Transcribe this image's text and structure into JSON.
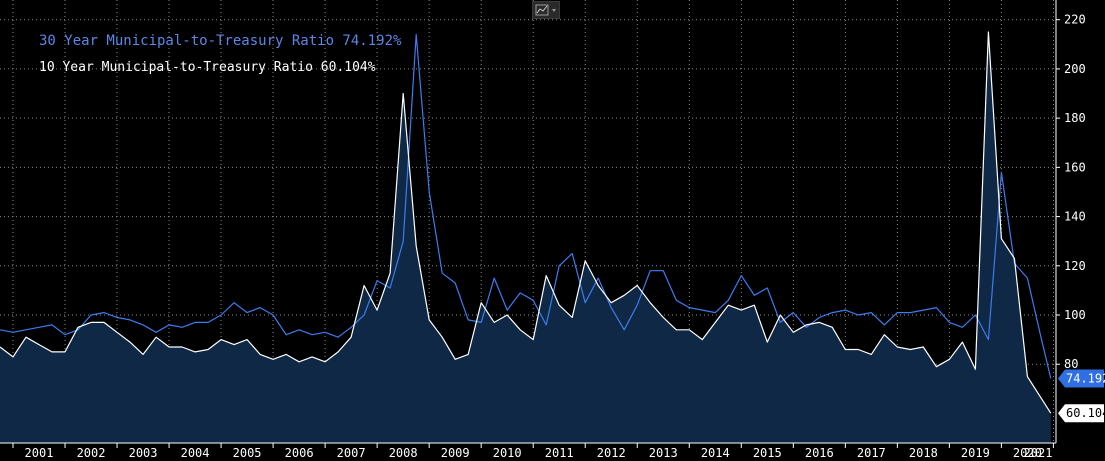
{
  "toolbar": {
    "icon": "line-chart-icon"
  },
  "legend": {
    "series_30": "30 Year Municipal-to-Treasury Ratio 74.192%",
    "series_10": "10 Year Municipal-to-Treasury Ratio 60.104%"
  },
  "colors": {
    "series_30": "#3d7cf0",
    "series_10": "#ffffff",
    "area": "#0e2846",
    "grid": "#8a8a8a",
    "background": "#000000"
  },
  "chart_data": {
    "type": "line",
    "x_unit": "year",
    "xlim": [
      2000.75,
      2021.05
    ],
    "ylim": [
      48,
      228
    ],
    "y_ticks": [
      80,
      100,
      120,
      140,
      160,
      180,
      200,
      220
    ],
    "x_ticks": [
      "2001",
      "2002",
      "2003",
      "2004",
      "2005",
      "2006",
      "2007",
      "2008",
      "2009",
      "2010",
      "2011",
      "2012",
      "2013",
      "2014",
      "2015",
      "2016",
      "2017",
      "2018",
      "2019",
      "2020",
      "2021"
    ],
    "grid": true,
    "last_value_flags": {
      "series_30": "74.192",
      "series_10": "60.104"
    },
    "series": [
      {
        "name": "30 Year Municipal-to-Treasury Ratio",
        "key": "series_30",
        "points": [
          [
            2000.75,
            94
          ],
          [
            2001.0,
            93
          ],
          [
            2001.25,
            94
          ],
          [
            2001.5,
            95
          ],
          [
            2001.75,
            96
          ],
          [
            2002.0,
            92
          ],
          [
            2002.25,
            94
          ],
          [
            2002.5,
            100
          ],
          [
            2002.75,
            101
          ],
          [
            2003.0,
            99
          ],
          [
            2003.25,
            98
          ],
          [
            2003.5,
            96
          ],
          [
            2003.75,
            93
          ],
          [
            2004.0,
            96
          ],
          [
            2004.25,
            95
          ],
          [
            2004.5,
            97
          ],
          [
            2004.75,
            97
          ],
          [
            2005.0,
            100
          ],
          [
            2005.25,
            105
          ],
          [
            2005.5,
            101
          ],
          [
            2005.75,
            103
          ],
          [
            2006.0,
            100
          ],
          [
            2006.25,
            92
          ],
          [
            2006.5,
            94
          ],
          [
            2006.75,
            92
          ],
          [
            2007.0,
            93
          ],
          [
            2007.25,
            91
          ],
          [
            2007.5,
            95
          ],
          [
            2007.75,
            100
          ],
          [
            2008.0,
            114
          ],
          [
            2008.25,
            111
          ],
          [
            2008.5,
            130
          ],
          [
            2008.75,
            214
          ],
          [
            2009.0,
            150
          ],
          [
            2009.25,
            117
          ],
          [
            2009.5,
            113
          ],
          [
            2009.75,
            98
          ],
          [
            2010.0,
            97
          ],
          [
            2010.25,
            115
          ],
          [
            2010.5,
            102
          ],
          [
            2010.75,
            109
          ],
          [
            2011.0,
            106
          ],
          [
            2011.25,
            96
          ],
          [
            2011.5,
            120
          ],
          [
            2011.75,
            125
          ],
          [
            2012.0,
            105
          ],
          [
            2012.25,
            115
          ],
          [
            2012.5,
            103
          ],
          [
            2012.75,
            94
          ],
          [
            2013.0,
            104
          ],
          [
            2013.25,
            118
          ],
          [
            2013.5,
            118
          ],
          [
            2013.75,
            106
          ],
          [
            2014.0,
            103
          ],
          [
            2014.25,
            102
          ],
          [
            2014.5,
            101
          ],
          [
            2014.75,
            106
          ],
          [
            2015.0,
            116
          ],
          [
            2015.25,
            108
          ],
          [
            2015.5,
            111
          ],
          [
            2015.75,
            97
          ],
          [
            2016.0,
            101
          ],
          [
            2016.25,
            95
          ],
          [
            2016.5,
            99
          ],
          [
            2016.75,
            101
          ],
          [
            2017.0,
            102
          ],
          [
            2017.25,
            100
          ],
          [
            2017.5,
            101
          ],
          [
            2017.75,
            96
          ],
          [
            2018.0,
            101
          ],
          [
            2018.25,
            101
          ],
          [
            2018.5,
            102
          ],
          [
            2018.75,
            103
          ],
          [
            2019.0,
            97
          ],
          [
            2019.25,
            95
          ],
          [
            2019.5,
            100
          ],
          [
            2019.75,
            90
          ],
          [
            2020.0,
            158
          ],
          [
            2020.25,
            121
          ],
          [
            2020.5,
            115
          ],
          [
            2020.75,
            92
          ],
          [
            2020.95,
            74.192
          ]
        ]
      },
      {
        "name": "10 Year Municipal-to-Treasury Ratio",
        "key": "series_10",
        "points": [
          [
            2000.75,
            87
          ],
          [
            2001.0,
            83
          ],
          [
            2001.25,
            91
          ],
          [
            2001.5,
            88
          ],
          [
            2001.75,
            85
          ],
          [
            2002.0,
            85
          ],
          [
            2002.25,
            95
          ],
          [
            2002.5,
            97
          ],
          [
            2002.75,
            97
          ],
          [
            2003.0,
            93
          ],
          [
            2003.25,
            89
          ],
          [
            2003.5,
            84
          ],
          [
            2003.75,
            91
          ],
          [
            2004.0,
            87
          ],
          [
            2004.25,
            87
          ],
          [
            2004.5,
            85
          ],
          [
            2004.75,
            86
          ],
          [
            2005.0,
            90
          ],
          [
            2005.25,
            88
          ],
          [
            2005.5,
            90
          ],
          [
            2005.75,
            84
          ],
          [
            2006.0,
            82
          ],
          [
            2006.25,
            84
          ],
          [
            2006.5,
            81
          ],
          [
            2006.75,
            83
          ],
          [
            2007.0,
            81
          ],
          [
            2007.25,
            85
          ],
          [
            2007.5,
            91
          ],
          [
            2007.75,
            112
          ],
          [
            2008.0,
            102
          ],
          [
            2008.25,
            117
          ],
          [
            2008.5,
            190
          ],
          [
            2008.75,
            128
          ],
          [
            2009.0,
            98
          ],
          [
            2009.25,
            91
          ],
          [
            2009.5,
            82
          ],
          [
            2009.75,
            84
          ],
          [
            2010.0,
            105
          ],
          [
            2010.25,
            97
          ],
          [
            2010.5,
            100
          ],
          [
            2010.75,
            94
          ],
          [
            2011.0,
            90
          ],
          [
            2011.25,
            116
          ],
          [
            2011.5,
            104
          ],
          [
            2011.75,
            99
          ],
          [
            2012.0,
            122
          ],
          [
            2012.25,
            112
          ],
          [
            2012.5,
            105
          ],
          [
            2012.75,
            108
          ],
          [
            2013.0,
            112
          ],
          [
            2013.25,
            105
          ],
          [
            2013.5,
            99
          ],
          [
            2013.75,
            94
          ],
          [
            2014.0,
            94
          ],
          [
            2014.25,
            90
          ],
          [
            2014.5,
            97
          ],
          [
            2014.75,
            104
          ],
          [
            2015.0,
            102
          ],
          [
            2015.25,
            104
          ],
          [
            2015.5,
            89
          ],
          [
            2015.75,
            100
          ],
          [
            2016.0,
            93
          ],
          [
            2016.25,
            96
          ],
          [
            2016.5,
            97
          ],
          [
            2016.75,
            95
          ],
          [
            2017.0,
            86
          ],
          [
            2017.25,
            86
          ],
          [
            2017.5,
            84
          ],
          [
            2017.75,
            92
          ],
          [
            2018.0,
            87
          ],
          [
            2018.25,
            86
          ],
          [
            2018.5,
            87
          ],
          [
            2018.75,
            79
          ],
          [
            2019.0,
            82
          ],
          [
            2019.25,
            89
          ],
          [
            2019.5,
            78
          ],
          [
            2019.75,
            215
          ],
          [
            2020.0,
            131
          ],
          [
            2020.25,
            123
          ],
          [
            2020.5,
            75
          ],
          [
            2020.95,
            60.104
          ]
        ]
      }
    ]
  }
}
